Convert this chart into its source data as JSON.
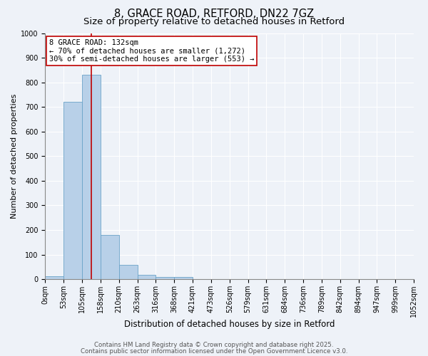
{
  "title": "8, GRACE ROAD, RETFORD, DN22 7GZ",
  "subtitle": "Size of property relative to detached houses in Retford",
  "xlabel": "Distribution of detached houses by size in Retford",
  "ylabel": "Number of detached properties",
  "bar_values": [
    12,
    720,
    830,
    180,
    57,
    18,
    8,
    10,
    0,
    0,
    0,
    0,
    0,
    0,
    0,
    0,
    0,
    0,
    0,
    0
  ],
  "bin_labels": [
    "0sqm",
    "53sqm",
    "105sqm",
    "158sqm",
    "210sqm",
    "263sqm",
    "316sqm",
    "368sqm",
    "421sqm",
    "473sqm",
    "526sqm",
    "579sqm",
    "631sqm",
    "684sqm",
    "736sqm",
    "789sqm",
    "842sqm",
    "894sqm",
    "947sqm",
    "999sqm",
    "1052sqm"
  ],
  "bar_color": "#b8d0e8",
  "bar_edge_color": "#6ba3c8",
  "vline_color": "#c00000",
  "annotation_text": "8 GRACE ROAD: 132sqm\n← 70% of detached houses are smaller (1,272)\n30% of semi-detached houses are larger (553) →",
  "annotation_box_color": "#ffffff",
  "annotation_box_edgecolor": "#c00000",
  "annotation_fontsize": 7.5,
  "ylim": [
    0,
    1000
  ],
  "yticks": [
    0,
    100,
    200,
    300,
    400,
    500,
    600,
    700,
    800,
    900,
    1000
  ],
  "title_fontsize": 10.5,
  "subtitle_fontsize": 9.5,
  "xlabel_fontsize": 8.5,
  "ylabel_fontsize": 8,
  "tick_fontsize": 7,
  "footer_text1": "Contains HM Land Registry data © Crown copyright and database right 2025.",
  "footer_text2": "Contains public sector information licensed under the Open Government Licence v3.0.",
  "bg_color": "#eef2f8",
  "grid_color": "#ffffff"
}
